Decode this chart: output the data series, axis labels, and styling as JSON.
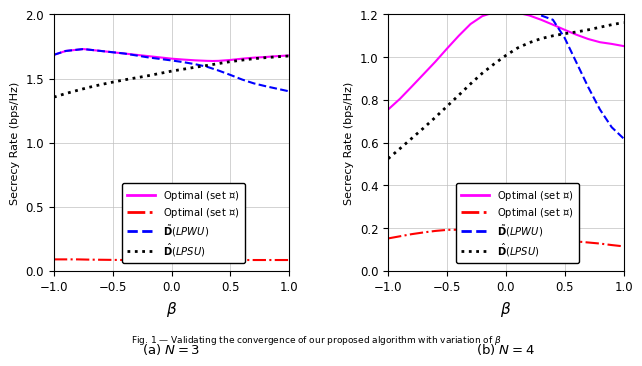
{
  "subplot_a": {
    "title": "(a) $N = 3$",
    "xlim": [
      -1,
      1
    ],
    "ylim": [
      0,
      2
    ],
    "yticks": [
      0,
      0.5,
      1.0,
      1.5,
      2.0
    ],
    "xticks": [
      -1,
      -0.5,
      0,
      0.5,
      1
    ],
    "ylabel": "Secrecy Rate (bps/Hz)",
    "xlabel": "$\\beta$",
    "optimal_L": {
      "x": [
        -1.0,
        -0.9,
        -0.8,
        -0.75,
        -0.7,
        -0.65,
        -0.6,
        -0.5,
        -0.4,
        -0.3,
        -0.2,
        -0.1,
        0.0,
        0.1,
        0.2,
        0.3,
        0.35,
        0.4,
        0.5,
        0.6,
        0.7,
        0.8,
        0.9,
        1.0
      ],
      "y": [
        1.685,
        1.715,
        1.725,
        1.73,
        1.725,
        1.72,
        1.715,
        1.705,
        1.695,
        1.685,
        1.675,
        1.665,
        1.655,
        1.648,
        1.642,
        1.638,
        1.637,
        1.638,
        1.645,
        1.655,
        1.663,
        1.668,
        1.675,
        1.68
      ],
      "color": "#FF00FF",
      "linestyle": "solid",
      "linewidth": 1.5
    },
    "optimal_O": {
      "x": [
        -1.0,
        -0.9,
        -0.8,
        -0.7,
        -0.6,
        -0.5,
        -0.4,
        -0.3,
        -0.2,
        -0.1,
        0.0,
        0.1,
        0.2,
        0.3,
        0.4,
        0.5,
        0.6,
        0.7,
        0.8,
        0.9,
        1.0
      ],
      "y": [
        0.09,
        0.09,
        0.09,
        0.088,
        0.087,
        0.086,
        0.085,
        0.085,
        0.085,
        0.085,
        0.085,
        0.085,
        0.085,
        0.085,
        0.085,
        0.085,
        0.085,
        0.085,
        0.085,
        0.085,
        0.085
      ],
      "color": "#FF0000",
      "linestyle": "dashdot",
      "linewidth": 1.5
    },
    "tilde_D_LPWU": {
      "x": [
        -1.0,
        -0.9,
        -0.8,
        -0.75,
        -0.7,
        -0.65,
        -0.6,
        -0.5,
        -0.4,
        -0.3,
        -0.2,
        -0.1,
        0.0,
        0.1,
        0.2,
        0.3,
        0.4,
        0.5,
        0.6,
        0.7,
        0.8,
        0.9,
        1.0
      ],
      "y": [
        1.685,
        1.715,
        1.725,
        1.73,
        1.725,
        1.72,
        1.715,
        1.705,
        1.695,
        1.68,
        1.665,
        1.653,
        1.641,
        1.628,
        1.612,
        1.592,
        1.562,
        1.528,
        1.492,
        1.462,
        1.44,
        1.42,
        1.4
      ],
      "color": "#0000FF",
      "linestyle": "dashed",
      "linewidth": 1.5
    },
    "hat_D_LPSU": {
      "x": [
        -1.0,
        -0.9,
        -0.8,
        -0.7,
        -0.6,
        -0.5,
        -0.4,
        -0.3,
        -0.2,
        -0.1,
        0.0,
        0.1,
        0.2,
        0.3,
        0.4,
        0.5,
        0.6,
        0.7,
        0.8,
        0.9,
        1.0
      ],
      "y": [
        1.355,
        1.383,
        1.408,
        1.432,
        1.453,
        1.472,
        1.49,
        1.506,
        1.522,
        1.54,
        1.558,
        1.573,
        1.588,
        1.602,
        1.617,
        1.632,
        1.644,
        1.655,
        1.663,
        1.67,
        1.676
      ],
      "color": "#000000",
      "linestyle": "dotted",
      "linewidth": 2.0
    }
  },
  "subplot_b": {
    "title": "(b) $N = 4$",
    "xlim": [
      -1,
      1
    ],
    "ylim": [
      0,
      1.2
    ],
    "yticks": [
      0,
      0.2,
      0.4,
      0.6,
      0.8,
      1.0,
      1.2
    ],
    "xticks": [
      -1,
      -0.5,
      0,
      0.5,
      1
    ],
    "ylabel": "Secrecy Rate (bps/Hz)",
    "xlabel": "$\\beta$",
    "optimal_L": {
      "x": [
        -1.0,
        -0.9,
        -0.8,
        -0.7,
        -0.6,
        -0.5,
        -0.4,
        -0.3,
        -0.2,
        -0.1,
        0.0,
        0.1,
        0.2,
        0.3,
        0.4,
        0.5,
        0.6,
        0.7,
        0.8,
        0.9,
        1.0
      ],
      "y": [
        0.755,
        0.805,
        0.862,
        0.92,
        0.978,
        1.04,
        1.1,
        1.155,
        1.192,
        1.21,
        1.215,
        1.208,
        1.195,
        1.175,
        1.152,
        1.128,
        1.105,
        1.085,
        1.07,
        1.062,
        1.052
      ],
      "color": "#FF00FF",
      "linestyle": "solid",
      "linewidth": 1.5
    },
    "optimal_O": {
      "x": [
        -1.0,
        -0.9,
        -0.8,
        -0.7,
        -0.6,
        -0.5,
        -0.4,
        -0.3,
        -0.2,
        -0.1,
        0.0,
        0.1,
        0.2,
        0.3,
        0.4,
        0.5,
        0.6,
        0.7,
        0.8,
        0.9,
        1.0
      ],
      "y": [
        0.152,
        0.162,
        0.172,
        0.18,
        0.187,
        0.192,
        0.193,
        0.19,
        0.184,
        0.177,
        0.17,
        0.163,
        0.157,
        0.152,
        0.147,
        0.143,
        0.138,
        0.133,
        0.128,
        0.121,
        0.115
      ],
      "color": "#FF0000",
      "linestyle": "dashdot",
      "linewidth": 1.5
    },
    "tilde_D_LPWU": {
      "x": [
        0.3,
        0.4,
        0.5,
        0.6,
        0.7,
        0.8,
        0.9,
        1.0
      ],
      "y": [
        1.195,
        1.175,
        1.09,
        0.975,
        0.86,
        0.755,
        0.672,
        0.62
      ],
      "color": "#0000FF",
      "linestyle": "dashed",
      "linewidth": 1.5
    },
    "hat_D_LPSU": {
      "x": [
        -1.0,
        -0.9,
        -0.8,
        -0.7,
        -0.6,
        -0.5,
        -0.4,
        -0.3,
        -0.2,
        -0.1,
        0.0,
        0.1,
        0.2,
        0.3,
        0.4,
        0.5,
        0.6,
        0.7,
        0.8,
        0.9,
        1.0
      ],
      "y": [
        0.525,
        0.572,
        0.62,
        0.668,
        0.718,
        0.77,
        0.822,
        0.875,
        0.925,
        0.968,
        1.008,
        1.043,
        1.068,
        1.087,
        1.1,
        1.11,
        1.118,
        1.128,
        1.14,
        1.152,
        1.162
      ],
      "color": "#000000",
      "linestyle": "dotted",
      "linewidth": 2.0
    }
  },
  "legend_labels": [
    "Optimal (set $\\mathcal{L}$)",
    "Optimal (set $\\mathcal{O}$)",
    "$\\tilde{\\mathbf{D}}$($LPWU$)",
    "$\\hat{\\mathbf{D}}$($LPSU$)"
  ],
  "legend_colors": [
    "#FF00FF",
    "#FF0000",
    "#0000FF",
    "#000000"
  ],
  "legend_linestyles": [
    "solid",
    "dashdot",
    "dashed",
    "dotted"
  ],
  "caption": "Fig. 1 — Validating the convergence of our proposed algorithm with variation of $\\beta$"
}
